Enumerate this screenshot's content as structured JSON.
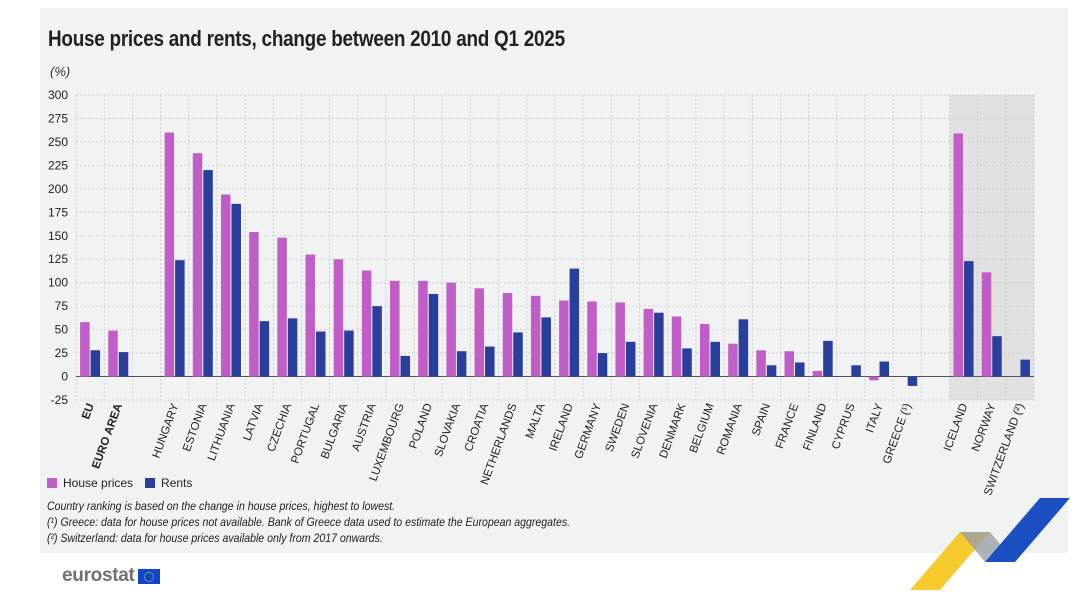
{
  "header": {
    "title": "House prices and rents, change between 2010 and Q1 2025",
    "unit": "(%)"
  },
  "legend": {
    "house_label": "House prices",
    "rent_label": "Rents"
  },
  "notes": {
    "line1": "Country ranking is based on the change in house prices, highest to lowest.",
    "line2": "(¹) Greece: data for house prices not available. Bank of Greece data used to estimate the European aggregates.",
    "line3": "(²) Switzerland: data for house prices available only from 2017 onwards."
  },
  "logo": {
    "text": "eurostat"
  },
  "colors": {
    "house": "#c15dc6",
    "rent": "#2a3e9c",
    "shade": "#e1e1e1",
    "grid": "#c8c8c8"
  },
  "chart_data": {
    "type": "bar",
    "title": "House prices and rents, change between 2010 and Q1 2025",
    "ylabel": "(%)",
    "ylim": [
      -25,
      300
    ],
    "yticks": [
      -25,
      0,
      25,
      50,
      75,
      100,
      125,
      150,
      175,
      200,
      225,
      250,
      275,
      300
    ],
    "categories": [
      "EU",
      "EURO AREA",
      "",
      "HUNGARY",
      "ESTONIA",
      "LITHUANIA",
      "LATVIA",
      "CZECHIA",
      "PORTUGAL",
      "BULGARIA",
      "AUSTRIA",
      "LUXEMBOURG",
      "POLAND",
      "SLOVAKIA",
      "CROATIA",
      "NETHERLANDS",
      "MALTA",
      "IRELAND",
      "GERMANY",
      "SWEDEN",
      "SLOVENIA",
      "DENMARK",
      "BELGIUM",
      "ROMANIA",
      "SPAIN",
      "FRANCE",
      "FINLAND",
      "CYPRUS",
      "ITALY",
      "GREECE (¹)",
      "",
      "ICELAND",
      "NORWAY",
      "SWITZERLAND (²)"
    ],
    "bold_categories": [
      "EU",
      "EURO AREA"
    ],
    "shaded_categories": [
      "ICELAND",
      "NORWAY",
      "SWITZERLAND (²)"
    ],
    "series": [
      {
        "name": "House prices",
        "values": [
          58,
          49,
          null,
          260,
          238,
          194,
          154,
          148,
          130,
          125,
          113,
          102,
          102,
          100,
          94,
          89,
          86,
          81,
          80,
          79,
          72,
          64,
          56,
          35,
          28,
          27,
          6,
          null,
          -4,
          null,
          null,
          259,
          111,
          null
        ]
      },
      {
        "name": "Rents",
        "values": [
          28,
          26,
          null,
          124,
          220,
          184,
          59,
          62,
          48,
          49,
          75,
          22,
          88,
          27,
          32,
          47,
          63,
          115,
          25,
          37,
          68,
          30,
          37,
          61,
          12,
          15,
          38,
          12,
          16,
          -10,
          null,
          123,
          43,
          18
        ]
      }
    ]
  }
}
